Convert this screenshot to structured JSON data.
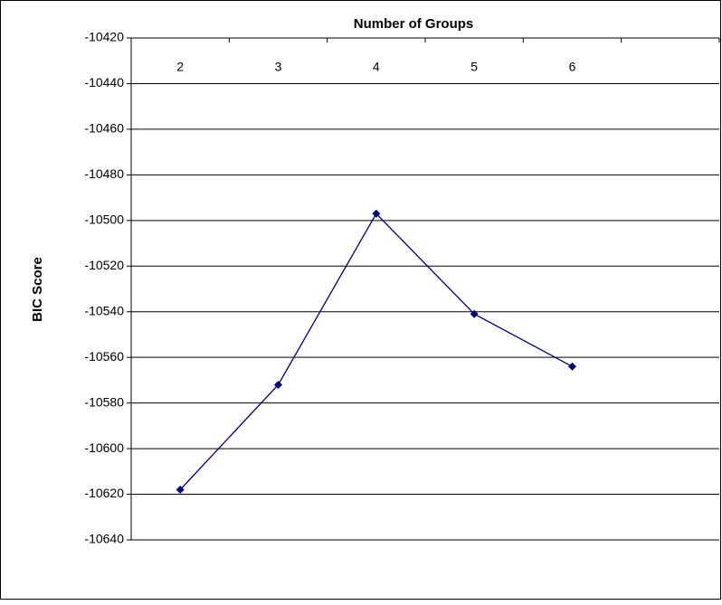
{
  "chart_data": {
    "type": "line",
    "x_label": "Number of Groups",
    "y_label": "BIC Score",
    "categories": [
      2,
      3,
      4,
      5,
      6,
      null
    ],
    "series": [
      {
        "name": "BIC",
        "color": "#000080",
        "values": [
          -10618,
          -10572,
          -10497,
          -10541,
          -10564,
          null
        ]
      }
    ],
    "ylim": [
      -10640,
      -10420
    ],
    "yticks": [
      -10420,
      -10440,
      -10460,
      -10480,
      -10500,
      -10520,
      -10540,
      -10560,
      -10580,
      -10600,
      -10620,
      -10640
    ],
    "grid": true,
    "x_axis_position": "top"
  }
}
